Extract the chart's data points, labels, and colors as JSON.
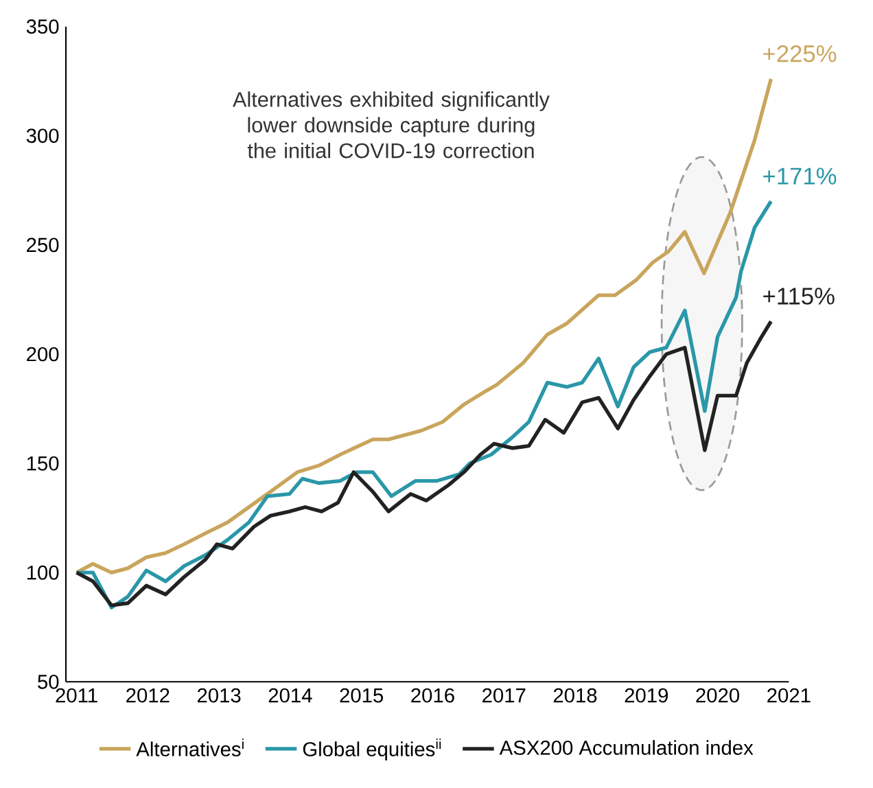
{
  "chart_data": {
    "type": "line",
    "annotations": [
      "Alternatives exhibited significantly lower downside capture during the initial COVID-19 correction",
      "+225%",
      "+171%",
      "+115%"
    ],
    "series": [
      {
        "name": "Alternatives$^{i}$",
        "color": "#c9a55c",
        "x": [
          2011.0,
          2011.23,
          2011.49,
          2011.72,
          2011.98,
          2012.25,
          2012.51,
          2012.81,
          2013.12,
          2013.42,
          2013.72,
          2014.1,
          2014.4,
          2014.7,
          2015.16,
          2015.38,
          2015.84,
          2016.14,
          2016.44,
          2016.74,
          2016.9,
          2017.27,
          2017.61,
          2017.88,
          2018.33,
          2018.56,
          2018.86,
          2019.09,
          2019.31,
          2019.54,
          2019.81,
          2020.18,
          2020.52,
          2020.75
        ],
        "values": [
          100,
          104,
          100,
          102,
          107,
          109,
          113,
          118,
          123,
          130,
          137,
          146,
          149,
          154,
          161,
          161,
          165,
          169,
          177,
          183,
          186,
          196,
          209,
          214,
          227,
          227,
          234,
          242,
          247,
          256,
          237,
          265,
          298,
          326
        ]
      },
      {
        "name": "Global equities$^{ii}$",
        "color": "#2a97a8",
        "x": [
          2011.0,
          2011.23,
          2011.49,
          2011.72,
          2011.98,
          2012.25,
          2012.51,
          2012.81,
          2013.12,
          2013.42,
          2013.68,
          2013.99,
          2014.17,
          2014.4,
          2014.7,
          2014.93,
          2015.16,
          2015.42,
          2015.76,
          2016.06,
          2016.37,
          2016.52,
          2016.82,
          2017.12,
          2017.35,
          2017.61,
          2017.88,
          2018.1,
          2018.33,
          2018.6,
          2018.82,
          2019.05,
          2019.28,
          2019.54,
          2019.82,
          2020.0,
          2020.26,
          2020.33,
          2020.52,
          2020.75
        ],
        "values": [
          100,
          100,
          84,
          89,
          101,
          96,
          103,
          108,
          115,
          123,
          135,
          136,
          143,
          141,
          142,
          146,
          146,
          135,
          142,
          142,
          145,
          150,
          154,
          162,
          169,
          187,
          185,
          187,
          198,
          176,
          194,
          201,
          203,
          220,
          174,
          208,
          226,
          238,
          258,
          270
        ]
      },
      {
        "name": "ASX200 Accumulation index",
        "color": "#222222",
        "x": [
          2011.0,
          2011.23,
          2011.49,
          2011.72,
          2011.98,
          2012.25,
          2012.51,
          2012.81,
          2012.97,
          2013.19,
          2013.49,
          2013.72,
          2013.99,
          2014.21,
          2014.44,
          2014.67,
          2014.89,
          2015.16,
          2015.38,
          2015.69,
          2015.91,
          2016.22,
          2016.44,
          2016.67,
          2016.86,
          2017.12,
          2017.35,
          2017.58,
          2017.84,
          2018.1,
          2018.33,
          2018.6,
          2018.82,
          2019.05,
          2019.28,
          2019.54,
          2019.82,
          2020.0,
          2020.26,
          2020.41,
          2020.6,
          2020.75
        ],
        "values": [
          100,
          96,
          85,
          86,
          94,
          90,
          98,
          106,
          113,
          111,
          121,
          126,
          128,
          130,
          128,
          132,
          146,
          137,
          128,
          136,
          133,
          140,
          146,
          154,
          159,
          157,
          158,
          170,
          164,
          178,
          180,
          166,
          179,
          190,
          200,
          203,
          156,
          181,
          181,
          196,
          207,
          215
        ]
      }
    ],
    "xlim": [
      2010.85,
      2021.0
    ],
    "ylim": [
      50,
      350
    ],
    "xticks": [
      2011,
      2012,
      2013,
      2014,
      2015,
      2016,
      2017,
      2018,
      2019,
      2020,
      2021
    ],
    "yticks": [
      50,
      100,
      150,
      200,
      250,
      300,
      350
    ],
    "grid": false,
    "legend": "bottom",
    "line_style": "solid"
  }
}
